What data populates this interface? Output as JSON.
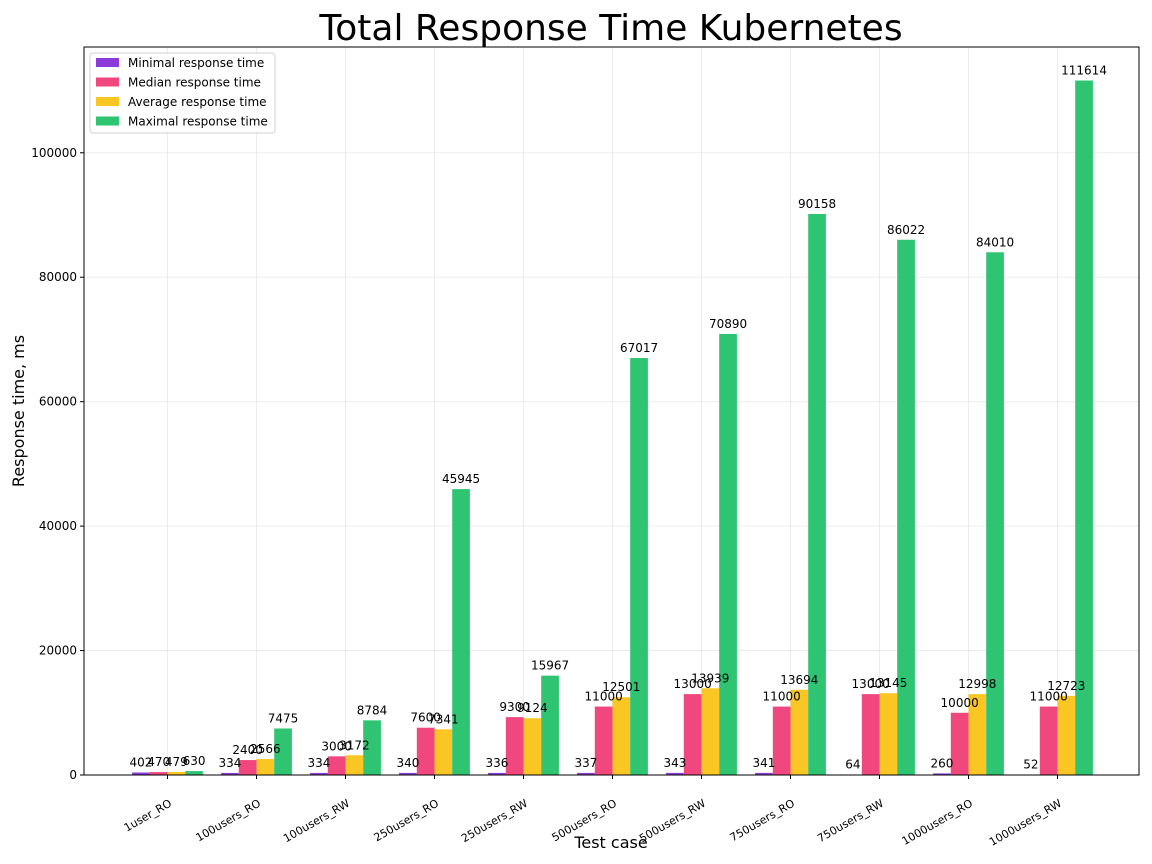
{
  "chart_data": {
    "type": "bar",
    "title": "Total Response Time Kubernetes",
    "xlabel": "Test case",
    "ylabel": "Response time, ms",
    "ylim": [
      0,
      117000
    ],
    "yticks": [
      0,
      20000,
      40000,
      60000,
      80000,
      100000
    ],
    "grid": true,
    "legend_position": "top-left",
    "categories": [
      "1user_RO",
      "100users_RO",
      "100users_RW",
      "250users_RO",
      "250users_RW",
      "500users_RO",
      "500users_RW",
      "750users_RO",
      "750users_RW",
      "1000users_RO",
      "1000users_RW"
    ],
    "series": [
      {
        "name": "Minimal response time",
        "color": "#8a3bd8",
        "values": [
          402,
          334,
          334,
          340,
          336,
          337,
          343,
          341,
          64,
          260,
          52
        ]
      },
      {
        "name": "Median response time",
        "color": "#f0477e",
        "values": [
          470,
          2400,
          3000,
          7600,
          9300,
          11000,
          13000,
          11000,
          13000,
          10000,
          11000
        ]
      },
      {
        "name": "Average response time",
        "color": "#f9c623",
        "values": [
          479,
          2566,
          3172,
          7341,
          9124,
          12501,
          13939,
          13694,
          13145,
          12998,
          12723
        ]
      },
      {
        "name": "Maximal response time",
        "color": "#2ec471",
        "values": [
          630,
          7475,
          8784,
          45945,
          15967,
          67017,
          70890,
          90158,
          86022,
          84010,
          111614
        ]
      }
    ]
  }
}
